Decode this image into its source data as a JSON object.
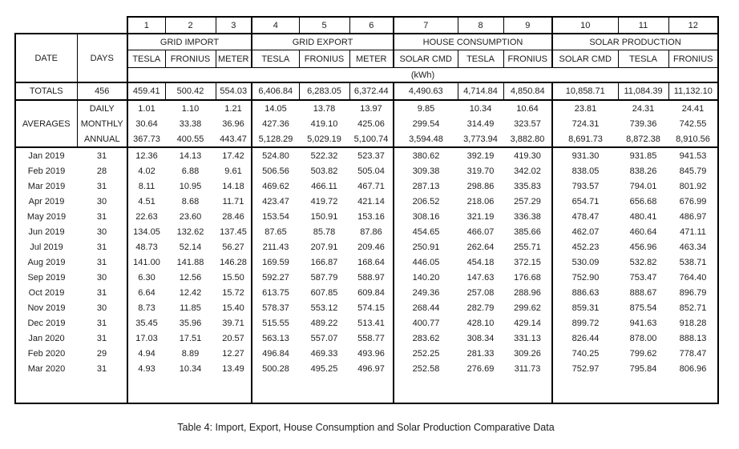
{
  "table": {
    "column_numbers": [
      "1",
      "2",
      "3",
      "4",
      "5",
      "6",
      "7",
      "8",
      "9",
      "10",
      "11",
      "12"
    ],
    "corner": {
      "date_label": "DATE",
      "days_label": "DAYS"
    },
    "groups": [
      {
        "label": "GRID IMPORT",
        "columns": [
          "TESLA",
          "FRONIUS",
          "METER"
        ]
      },
      {
        "label": "GRID EXPORT",
        "columns": [
          "TESLA",
          "FRONIUS",
          "METER"
        ]
      },
      {
        "label": "HOUSE CONSUMPTION",
        "columns": [
          "SOLAR CMD",
          "TESLA",
          "FRONIUS"
        ]
      },
      {
        "label": "SOLAR PRODUCTION",
        "columns": [
          "SOLAR CMD",
          "TESLA",
          "FRONIUS"
        ]
      }
    ],
    "units_label": "(kWh)",
    "totals": {
      "label": "TOTALS",
      "days": "456",
      "values": [
        "459.41",
        "500.42",
        "554.03",
        "6,406.84",
        "6,283.05",
        "6,372.44",
        "4,490.63",
        "4,714.84",
        "4,850.84",
        "10,858.71",
        "11,084.39",
        "11,132.10"
      ]
    },
    "averages": {
      "label": "AVERAGES",
      "rows": [
        {
          "label": "DAILY",
          "values": [
            "1.01",
            "1.10",
            "1.21",
            "14.05",
            "13.78",
            "13.97",
            "9.85",
            "10.34",
            "10.64",
            "23.81",
            "24.31",
            "24.41"
          ]
        },
        {
          "label": "MONTHLY",
          "values": [
            "30.64",
            "33.38",
            "36.96",
            "427.36",
            "419.10",
            "425.06",
            "299.54",
            "314.49",
            "323.57",
            "724.31",
            "739.36",
            "742.55"
          ]
        },
        {
          "label": "ANNUAL",
          "values": [
            "367.73",
            "400.55",
            "443.47",
            "5,128.29",
            "5,029.19",
            "5,100.74",
            "3,594.48",
            "3,773.94",
            "3,882.80",
            "8,691.73",
            "8,872.38",
            "8,910.56"
          ]
        }
      ]
    },
    "months": [
      {
        "date": "Jan 2019",
        "days": "31",
        "values": [
          "12.36",
          "14.13",
          "17.42",
          "524.80",
          "522.32",
          "523.37",
          "380.62",
          "392.19",
          "419.30",
          "931.30",
          "931.85",
          "941.53"
        ]
      },
      {
        "date": "Feb 2019",
        "days": "28",
        "values": [
          "4.02",
          "6.88",
          "9.61",
          "506.56",
          "503.82",
          "505.04",
          "309.38",
          "319.70",
          "342.02",
          "838.05",
          "838.26",
          "845.79"
        ]
      },
      {
        "date": "Mar 2019",
        "days": "31",
        "values": [
          "8.11",
          "10.95",
          "14.18",
          "469.62",
          "466.11",
          "467.71",
          "287.13",
          "298.86",
          "335.83",
          "793.57",
          "794.01",
          "801.92"
        ]
      },
      {
        "date": "Apr 2019",
        "days": "30",
        "values": [
          "4.51",
          "8.68",
          "11.71",
          "423.47",
          "419.72",
          "421.14",
          "206.52",
          "218.06",
          "257.29",
          "654.71",
          "656.68",
          "676.99"
        ]
      },
      {
        "date": "May 2019",
        "days": "31",
        "values": [
          "22.63",
          "23.60",
          "28.46",
          "153.54",
          "150.91",
          "153.16",
          "308.16",
          "321.19",
          "336.38",
          "478.47",
          "480.41",
          "486.97"
        ]
      },
      {
        "date": "Jun 2019",
        "days": "30",
        "values": [
          "134.05",
          "132.62",
          "137.45",
          "87.65",
          "85.78",
          "87.86",
          "454.65",
          "466.07",
          "385.66",
          "462.07",
          "460.64",
          "471.11"
        ]
      },
      {
        "date": "Jul 2019",
        "days": "31",
        "values": [
          "48.73",
          "52.14",
          "56.27",
          "211.43",
          "207.91",
          "209.46",
          "250.91",
          "262.64",
          "255.71",
          "452.23",
          "456.96",
          "463.34"
        ]
      },
      {
        "date": "Aug 2019",
        "days": "31",
        "values": [
          "141.00",
          "141.88",
          "146.28",
          "169.59",
          "166.87",
          "168.64",
          "446.05",
          "454.18",
          "372.15",
          "530.09",
          "532.82",
          "538.71"
        ]
      },
      {
        "date": "Sep 2019",
        "days": "30",
        "values": [
          "6.30",
          "12.56",
          "15.50",
          "592.27",
          "587.79",
          "588.97",
          "140.20",
          "147.63",
          "176.68",
          "752.90",
          "753.47",
          "764.40"
        ]
      },
      {
        "date": "Oct 2019",
        "days": "31",
        "values": [
          "6.64",
          "12.42",
          "15.72",
          "613.75",
          "607.85",
          "609.84",
          "249.36",
          "257.08",
          "288.96",
          "886.63",
          "888.67",
          "896.79"
        ]
      },
      {
        "date": "Nov 2019",
        "days": "30",
        "values": [
          "8.73",
          "11.85",
          "15.40",
          "578.37",
          "553.12",
          "574.15",
          "268.44",
          "282.79",
          "299.62",
          "859.31",
          "875.54",
          "852.71"
        ]
      },
      {
        "date": "Dec 2019",
        "days": "31",
        "values": [
          "35.45",
          "35.96",
          "39.71",
          "515.55",
          "489.22",
          "513.41",
          "400.77",
          "428.10",
          "429.14",
          "899.72",
          "941.63",
          "918.28"
        ]
      },
      {
        "date": "Jan 2020",
        "days": "31",
        "values": [
          "17.03",
          "17.51",
          "20.57",
          "563.13",
          "557.07",
          "558.77",
          "283.62",
          "308.34",
          "331.13",
          "826.44",
          "878.00",
          "888.13"
        ]
      },
      {
        "date": "Feb 2020",
        "days": "29",
        "values": [
          "4.94",
          "8.89",
          "12.27",
          "496.84",
          "469.33",
          "493.96",
          "252.25",
          "281.33",
          "309.26",
          "740.25",
          "799.62",
          "778.47"
        ]
      },
      {
        "date": "Mar 2020",
        "days": "31",
        "values": [
          "4.93",
          "10.34",
          "13.49",
          "500.28",
          "495.25",
          "496.97",
          "252.58",
          "276.69",
          "311.73",
          "752.97",
          "795.84",
          "806.96"
        ]
      }
    ]
  },
  "caption": "Table 4: Import, Export, House Consumption and Solar Production Comparative Data"
}
